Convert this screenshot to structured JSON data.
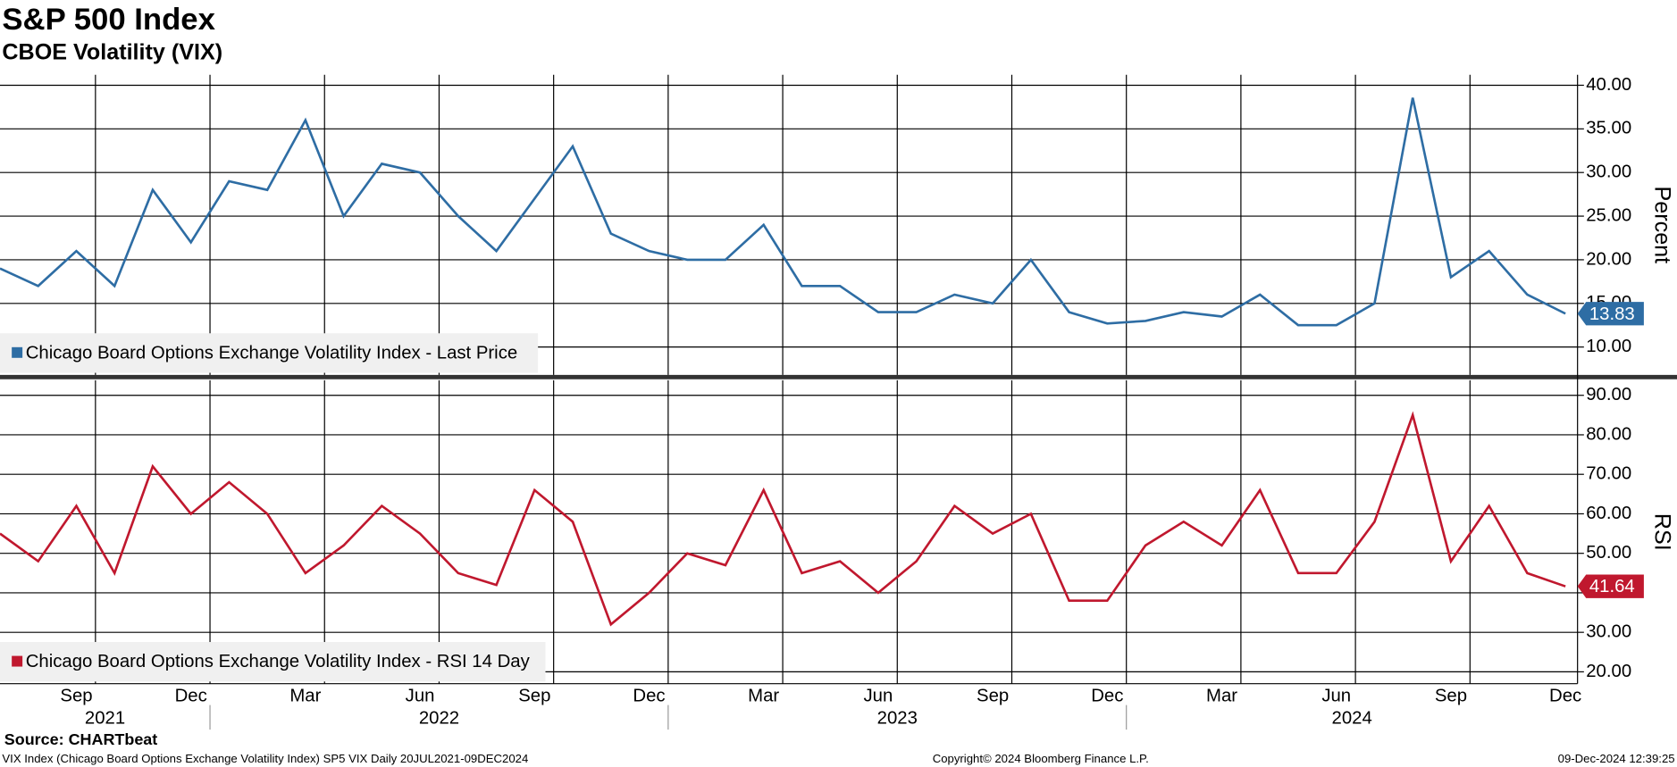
{
  "title": "S&P 500 Index",
  "subtitle": "CBOE Volatility (VIX)",
  "source": "Source: CHARTbeat",
  "footer": {
    "left": "VIX Index (Chicago Board Options Exchange Volatility Index) SP5 VIX  Daily 20JUL2021-09DEC2024",
    "center": "Copyright© 2024 Bloomberg Finance L.P.",
    "right": "09-Dec-2024 12:39:25"
  },
  "chart_data": [
    {
      "type": "line",
      "ylabel": "Percent",
      "x": [
        "2021-07",
        "2021-08",
        "2021-09",
        "2021-10",
        "2021-11",
        "2021-12",
        "2022-01",
        "2022-02",
        "2022-03",
        "2022-04",
        "2022-05",
        "2022-06",
        "2022-07",
        "2022-08",
        "2022-09",
        "2022-10",
        "2022-11",
        "2022-12",
        "2023-01",
        "2023-02",
        "2023-03",
        "2023-04",
        "2023-05",
        "2023-06",
        "2023-07",
        "2023-08",
        "2023-09",
        "2023-10",
        "2023-11",
        "2023-12",
        "2024-01",
        "2024-02",
        "2024-03",
        "2024-04",
        "2024-05",
        "2024-06",
        "2024-07",
        "2024-08",
        "2024-09",
        "2024-10",
        "2024-11",
        "2024-12"
      ],
      "series": [
        {
          "name": "Chicago Board Options Exchange Volatility Index - Last Price",
          "color": "#2e6da4",
          "values": [
            19,
            17,
            21,
            17,
            28,
            22,
            29,
            28,
            36,
            25,
            31,
            30,
            25,
            21,
            27,
            33,
            23,
            21,
            20,
            20,
            24,
            17,
            17,
            14,
            14,
            16,
            15,
            20,
            14,
            12.7,
            13,
            14,
            13.5,
            16,
            12.5,
            12.5,
            15,
            38.57,
            18,
            21,
            16,
            13.83
          ]
        }
      ],
      "xlim": [
        "2021-07",
        "2024-12"
      ],
      "ylim": [
        6.8,
        41.2
      ],
      "yticks": [
        {
          "value": 10,
          "label": "10.00"
        },
        {
          "value": 15,
          "label": "15.00"
        },
        {
          "value": 20,
          "label": "20.00"
        },
        {
          "value": 25,
          "label": "25.00"
        },
        {
          "value": 30,
          "label": "30.00"
        },
        {
          "value": 35,
          "label": "35.00"
        },
        {
          "value": 40,
          "label": "40.00"
        }
      ]
    },
    {
      "type": "line",
      "ylabel": "RSI",
      "x": [
        "2021-07",
        "2021-08",
        "2021-09",
        "2021-10",
        "2021-11",
        "2021-12",
        "2022-01",
        "2022-02",
        "2022-03",
        "2022-04",
        "2022-05",
        "2022-06",
        "2022-07",
        "2022-08",
        "2022-09",
        "2022-10",
        "2022-11",
        "2022-12",
        "2023-01",
        "2023-02",
        "2023-03",
        "2023-04",
        "2023-05",
        "2023-06",
        "2023-07",
        "2023-08",
        "2023-09",
        "2023-10",
        "2023-11",
        "2023-12",
        "2024-01",
        "2024-02",
        "2024-03",
        "2024-04",
        "2024-05",
        "2024-06",
        "2024-07",
        "2024-08",
        "2024-09",
        "2024-10",
        "2024-11",
        "2024-12"
      ],
      "series": [
        {
          "name": "Chicago Board Options Exchange Volatility Index - RSI 14 Day",
          "color": "#c0182e",
          "values": [
            55,
            48,
            62,
            45,
            72,
            60,
            68,
            60,
            45,
            52,
            62,
            55,
            45,
            42,
            66,
            58,
            32,
            40,
            50,
            47,
            66,
            45,
            48,
            40,
            48,
            62,
            55,
            60,
            38,
            38,
            52,
            58,
            52,
            66,
            45,
            45,
            58,
            85,
            48,
            62,
            45,
            41.64
          ]
        }
      ],
      "xlim": [
        "2021-07",
        "2024-12"
      ],
      "ylim": [
        17,
        93.8
      ],
      "yticks": [
        {
          "value": 20,
          "label": "20.00"
        },
        {
          "value": 30,
          "label": "30.00"
        },
        {
          "value": 40,
          "label": "40.00"
        },
        {
          "value": 50,
          "label": "50.00"
        },
        {
          "value": 60,
          "label": "60.00"
        },
        {
          "value": 70,
          "label": "70.00"
        },
        {
          "value": 80,
          "label": "80.00"
        },
        {
          "value": 90,
          "label": "90.00"
        }
      ],
      "xticks": [
        {
          "value": "2021-09",
          "label": "Sep"
        },
        {
          "value": "2021-12",
          "label": "Dec"
        },
        {
          "value": "2022-03",
          "label": "Mar"
        },
        {
          "value": "2022-06",
          "label": "Jun"
        },
        {
          "value": "2022-09",
          "label": "Sep"
        },
        {
          "value": "2022-12",
          "label": "Dec"
        },
        {
          "value": "2023-03",
          "label": "Mar"
        },
        {
          "value": "2023-06",
          "label": "Jun"
        },
        {
          "value": "2023-09",
          "label": "Sep"
        },
        {
          "value": "2023-12",
          "label": "Dec"
        },
        {
          "value": "2024-03",
          "label": "Mar"
        },
        {
          "value": "2024-06",
          "label": "Jun"
        },
        {
          "value": "2024-09",
          "label": "Sep"
        },
        {
          "value": "2024-12",
          "label": "Dec"
        }
      ],
      "years": [
        "2021",
        "2022",
        "2023",
        "2024"
      ]
    }
  ]
}
